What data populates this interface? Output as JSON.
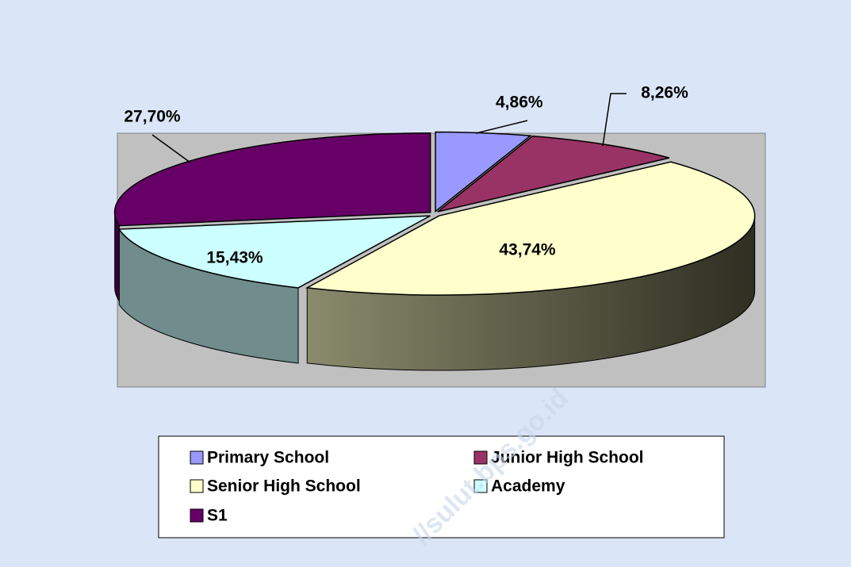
{
  "chart_data": {
    "type": "pie",
    "categories": [
      "Primary School",
      "Junior High School",
      "Senior High School",
      "Academy",
      "S1"
    ],
    "values": [
      4.86,
      8.26,
      43.74,
      15.43,
      27.7
    ],
    "value_labels": [
      "4,86%",
      "8,26%",
      "43,74%",
      "15,43%",
      "27,70%"
    ],
    "colors": [
      "#9999ff",
      "#993366",
      "#ffffcc",
      "#ccffff",
      "#660066"
    ],
    "watermark": "//sulut.bps.go.id"
  }
}
